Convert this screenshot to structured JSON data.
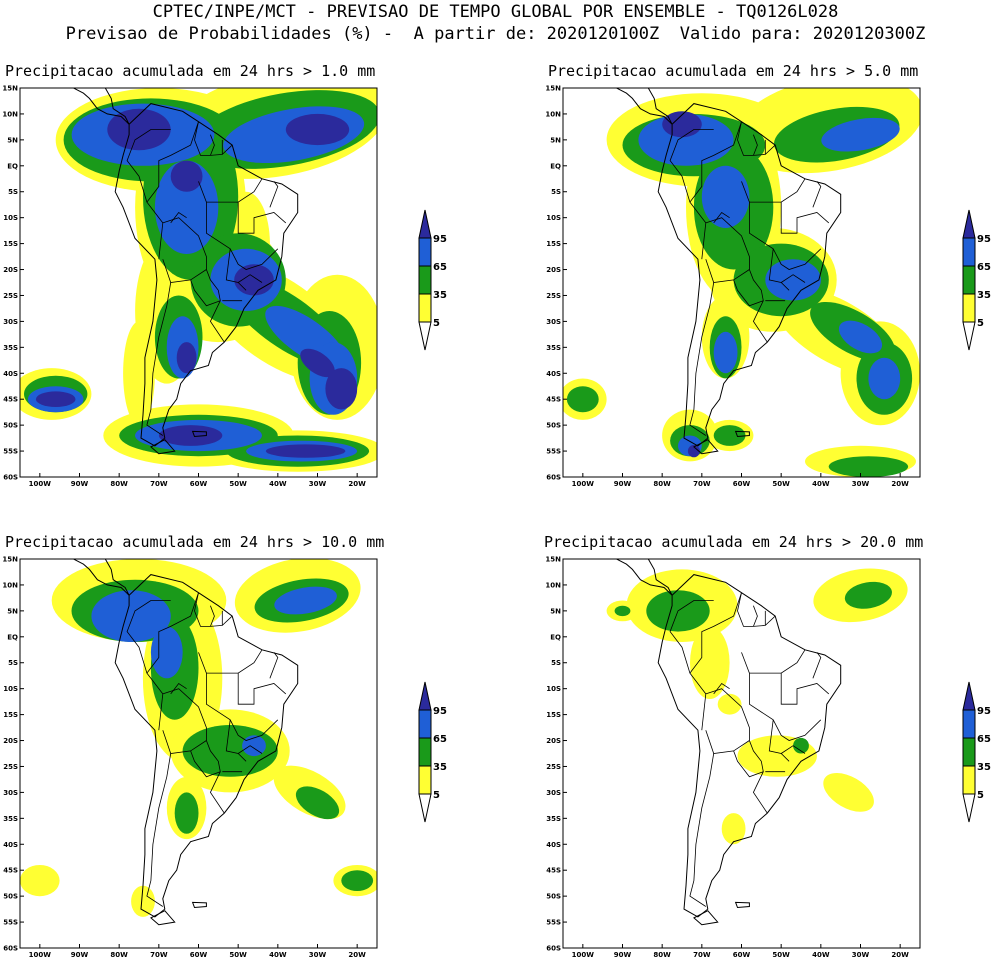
{
  "header": {
    "line1": "CPTEC/INPE/MCT - PREVISAO DE TEMPO GLOBAL POR ENSEMBLE - TQ0126L028",
    "line2": "Previsao de Probabilidades (%) -  A partir de: 2020120100Z  Valido para: 2020120300Z"
  },
  "colors": {
    "c5": "#ffff33",
    "c35": "#1a9a1a",
    "c65": "#1f5fd6",
    "c95": "#2b2a9c",
    "land_outline": "#000000"
  },
  "axes": {
    "lat_ticks": [
      "15N",
      "10N",
      "5N",
      "EQ",
      "5S",
      "10S",
      "15S",
      "20S",
      "25S",
      "30S",
      "35S",
      "40S",
      "45S",
      "50S",
      "55S",
      "60S"
    ],
    "lon_ticks": [
      "100W",
      "90W",
      "80W",
      "70W",
      "60W",
      "50W",
      "40W",
      "30W",
      "20W"
    ]
  },
  "colorbar": {
    "labels": [
      "95",
      "65",
      "35",
      "5"
    ]
  },
  "panels": [
    {
      "title": "Precipitacao acumulada em 24 hrs > 1.0 mm"
    },
    {
      "title": "Precipitacao acumulada em 24 hrs > 5.0 mm"
    },
    {
      "title": "Precipitacao acumulada em 24 hrs > 10.0 mm"
    },
    {
      "title": "Precipitacao acumulada em 24 hrs > 20.0 mm"
    }
  ]
}
